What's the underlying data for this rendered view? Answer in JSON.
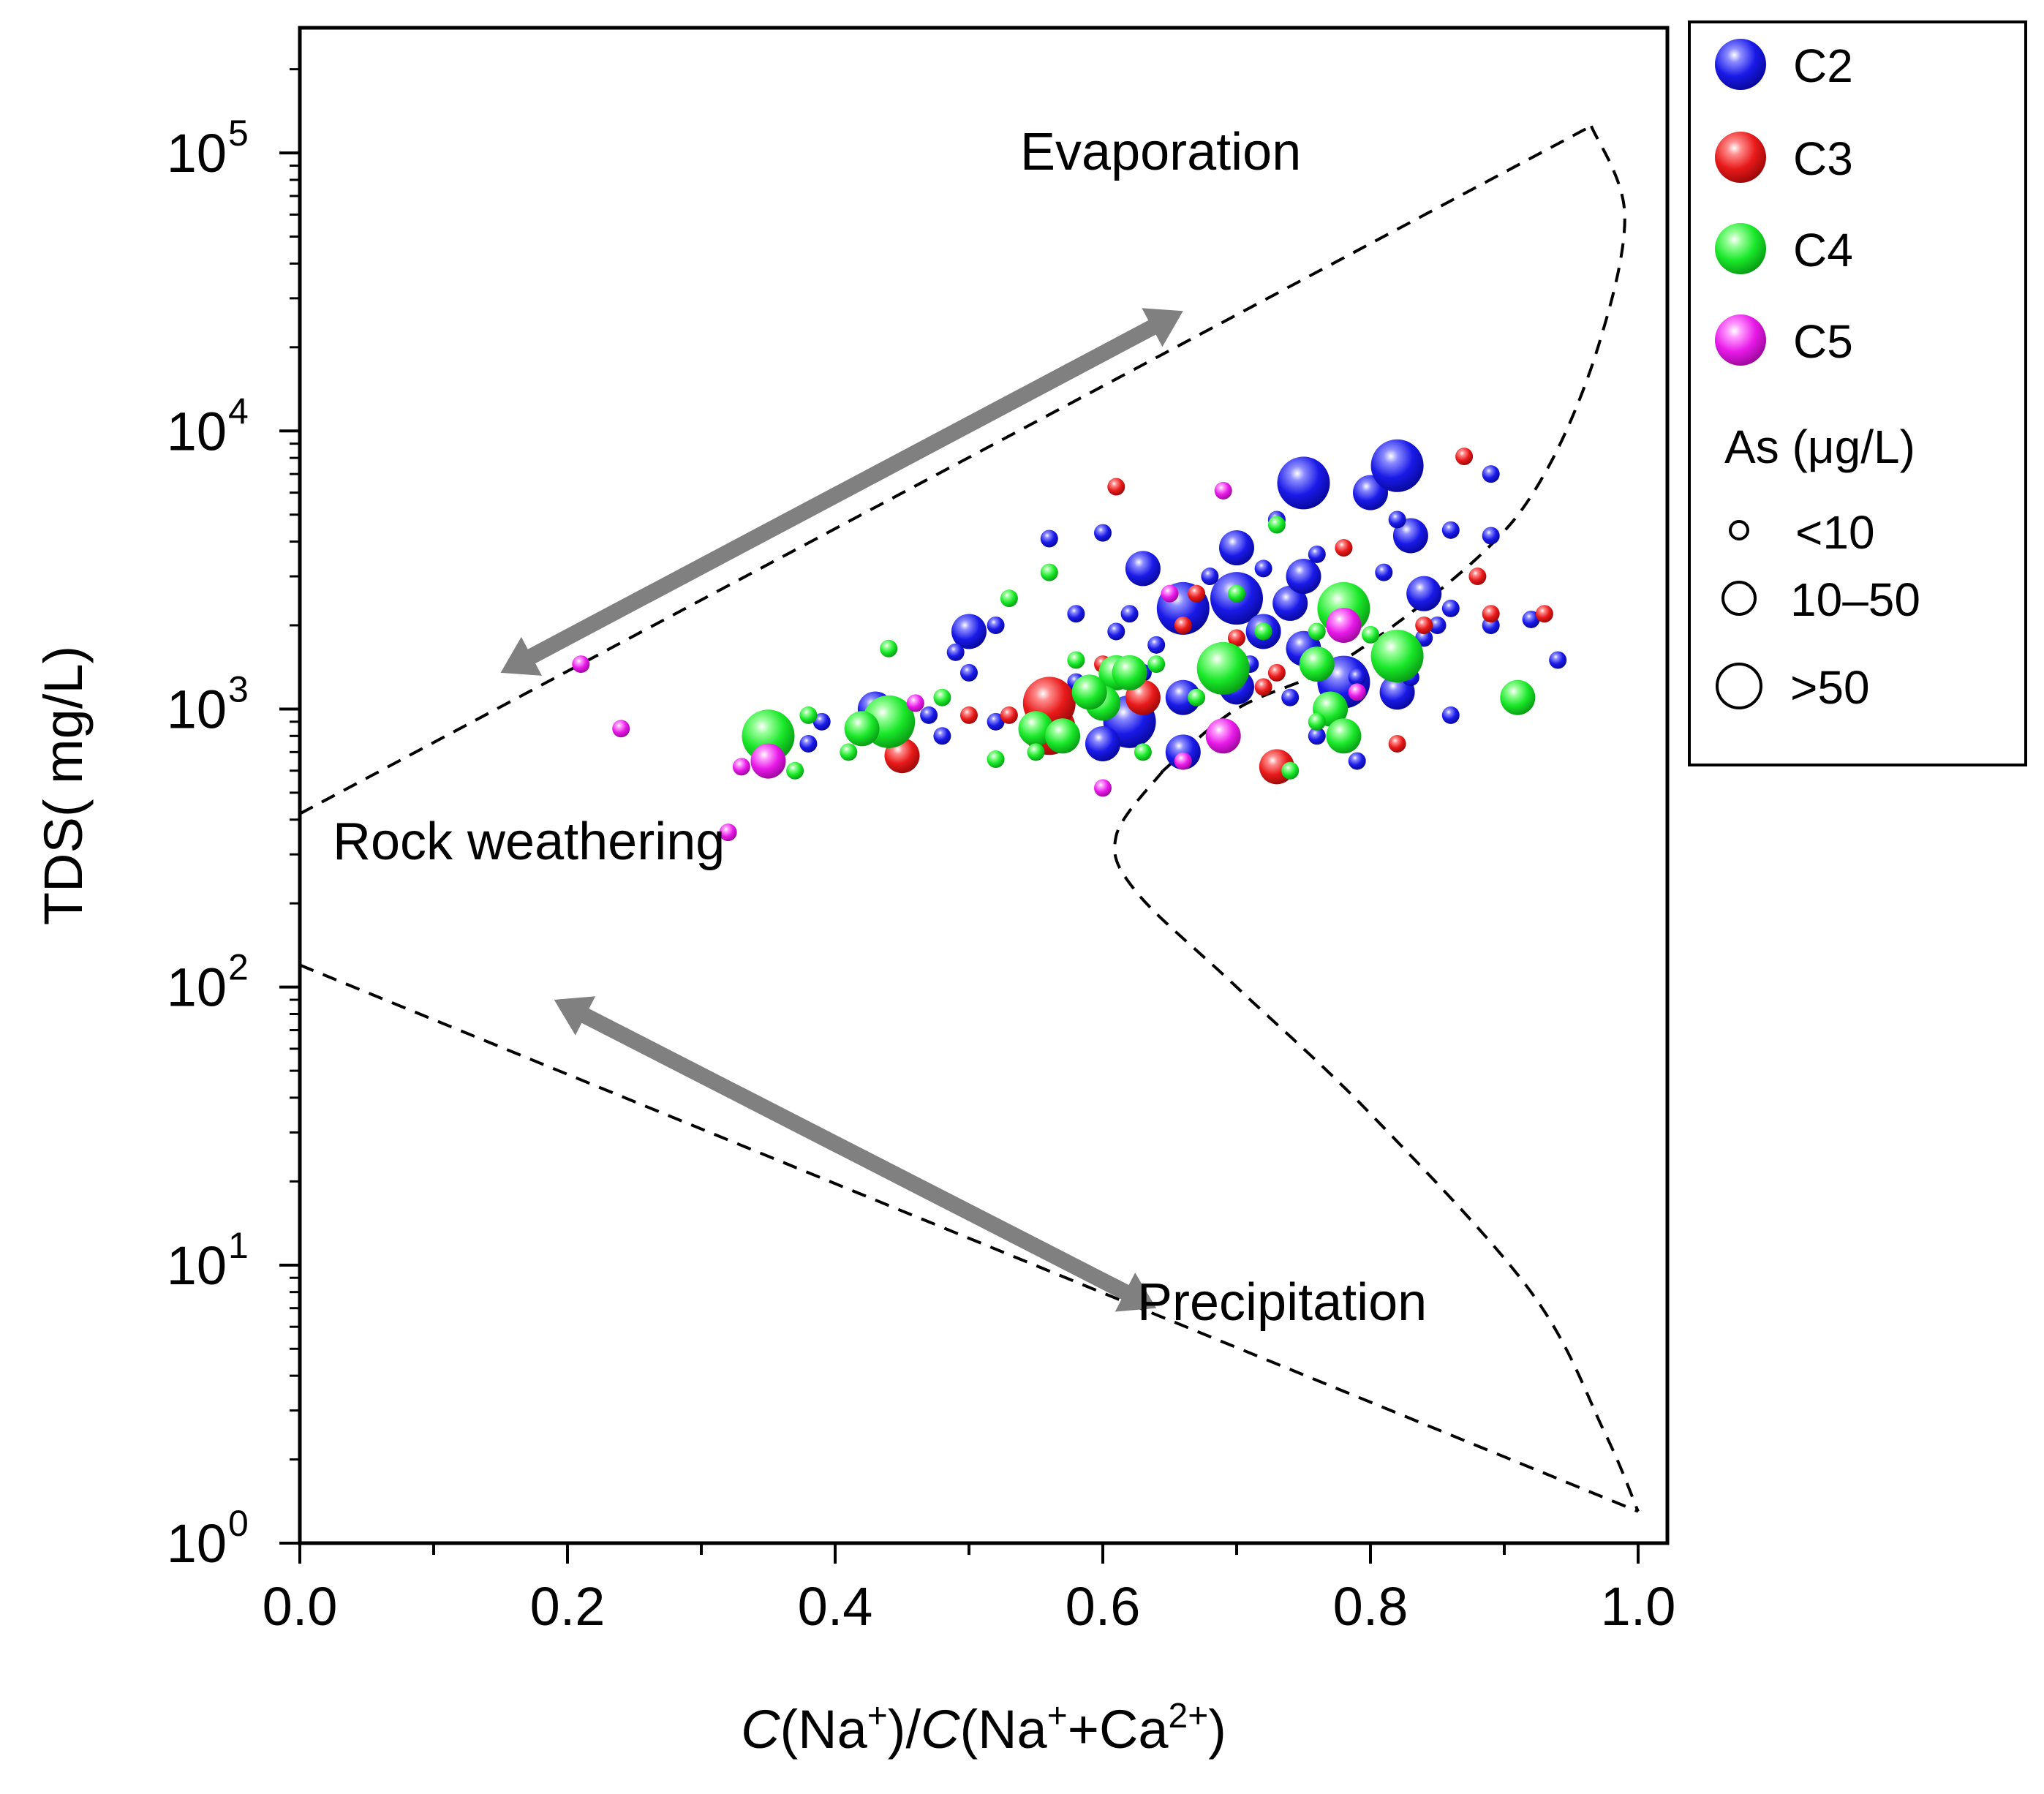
{
  "chart_data": {
    "type": "scatter",
    "title": "",
    "xlabel": {
      "italic": "C",
      "main": "(Na",
      "sup1": "+",
      "mid": ")/",
      "italic2": "C",
      "main2": "(Na",
      "sup2": "+",
      "main3": "+Ca",
      "sup3": "2+",
      "end": ")"
    },
    "ylabel": "TDS( mg/L)",
    "xlim": [
      0,
      1.0
    ],
    "ylim_log10": [
      0,
      5.45
    ],
    "x_ticks": [
      "0.0",
      "0.2",
      "0.4",
      "0.6",
      "0.8",
      "1.0"
    ],
    "x_tick_values": [
      0,
      0.2,
      0.4,
      0.6,
      0.8,
      1.0
    ],
    "y_ticks": [
      {
        "base": "10",
        "exp": "0",
        "value": 0
      },
      {
        "base": "10",
        "exp": "1",
        "value": 1
      },
      {
        "base": "10",
        "exp": "2",
        "value": 2
      },
      {
        "base": "10",
        "exp": "3",
        "value": 3
      },
      {
        "base": "10",
        "exp": "4",
        "value": 4
      },
      {
        "base": "10",
        "exp": "5",
        "value": 5
      }
    ],
    "annotations": {
      "evaporation": "Evaporation",
      "rock_weathering": "Rock weathering",
      "precipitation": "Precipitation"
    },
    "boundary_curves": {
      "upper": [
        [
          0,
          420
        ],
        [
          0.965,
          125000
        ]
      ],
      "right": [
        [
          0.965,
          125000
        ],
        [
          0.99,
          60000
        ],
        [
          0.97,
          20000
        ],
        [
          0.93,
          7000
        ],
        [
          0.88,
          3500
        ],
        [
          0.78,
          1500
        ],
        [
          0.7,
          1000
        ],
        [
          0.645,
          600
        ]
      ],
      "middle": [
        [
          0.645,
          600
        ],
        [
          0.61,
          350
        ],
        [
          0.625,
          220
        ],
        [
          0.7,
          100
        ],
        [
          0.8,
          35
        ],
        [
          0.92,
          8
        ],
        [
          0.975,
          2.5
        ],
        [
          1.0,
          1.3
        ]
      ],
      "lower": [
        [
          0,
          120
        ],
        [
          1.0,
          1.3
        ]
      ]
    },
    "arrows": [
      {
        "from": [
          0.15,
          1350
        ],
        "to": [
          0.66,
          27000
        ]
      },
      {
        "from": [
          0.19,
          90
        ],
        "to": [
          0.64,
          7
        ]
      }
    ],
    "series_colors": {
      "C2": "#1010e0",
      "C3": "#e01010",
      "C4": "#10e020",
      "C5": "#e020e0"
    },
    "size_categories": {
      "small": "<10",
      "medium": "10–50",
      "large": ">50"
    },
    "series": [
      {
        "name": "C2",
        "points": [
          [
            0.75,
            6500,
            3
          ],
          [
            0.8,
            6000,
            2
          ],
          [
            0.82,
            7500,
            3
          ],
          [
            0.83,
            4200,
            2
          ],
          [
            0.89,
            7000,
            1
          ],
          [
            0.82,
            4800,
            1
          ],
          [
            0.7,
            3800,
            2
          ],
          [
            0.63,
            3200,
            2
          ],
          [
            0.7,
            2500,
            3
          ],
          [
            0.66,
            2300,
            3
          ],
          [
            0.74,
            2400,
            2
          ],
          [
            0.75,
            3000,
            2
          ],
          [
            0.73,
            4800,
            1
          ],
          [
            0.6,
            4300,
            1
          ],
          [
            0.56,
            4100,
            1
          ],
          [
            0.68,
            3000,
            1
          ],
          [
            0.76,
            3600,
            1
          ],
          [
            0.72,
            3200,
            1
          ],
          [
            0.81,
            3100,
            1
          ],
          [
            0.84,
            2600,
            2
          ],
          [
            0.86,
            2300,
            1
          ],
          [
            0.86,
            4400,
            1
          ],
          [
            0.89,
            4200,
            1
          ],
          [
            0.5,
            1900,
            2
          ],
          [
            0.52,
            2000,
            1
          ],
          [
            0.49,
            1600,
            1
          ],
          [
            0.5,
            1350,
            1
          ],
          [
            0.58,
            2200,
            1
          ],
          [
            0.61,
            1900,
            1
          ],
          [
            0.62,
            2200,
            1
          ],
          [
            0.64,
            1700,
            1
          ],
          [
            0.72,
            1900,
            2
          ],
          [
            0.75,
            1650,
            2
          ],
          [
            0.78,
            1250,
            3
          ],
          [
            0.71,
            1450,
            1
          ],
          [
            0.74,
            1100,
            1
          ],
          [
            0.79,
            1300,
            1
          ],
          [
            0.81,
            1700,
            1
          ],
          [
            0.82,
            1150,
            2
          ],
          [
            0.84,
            1800,
            1
          ],
          [
            0.85,
            2000,
            1
          ],
          [
            0.89,
            2000,
            1
          ],
          [
            0.92,
            2100,
            1
          ],
          [
            0.94,
            1500,
            1
          ],
          [
            0.62,
            900,
            3
          ],
          [
            0.6,
            750,
            2
          ],
          [
            0.66,
            1100,
            2
          ],
          [
            0.66,
            700,
            2
          ],
          [
            0.43,
            1000,
            2
          ],
          [
            0.39,
            900,
            1
          ],
          [
            0.47,
            950,
            1
          ],
          [
            0.48,
            800,
            1
          ],
          [
            0.52,
            900,
            1
          ],
          [
            0.56,
            1100,
            1
          ],
          [
            0.58,
            1250,
            1
          ],
          [
            0.63,
            1350,
            1
          ],
          [
            0.7,
            1200,
            2
          ],
          [
            0.86,
            950,
            1
          ],
          [
            0.79,
            650,
            1
          ],
          [
            0.83,
            1300,
            1
          ],
          [
            0.38,
            750,
            1
          ],
          [
            0.44,
            850,
            1
          ],
          [
            0.55,
            800,
            1
          ],
          [
            0.76,
            800,
            1
          ]
        ]
      },
      {
        "name": "C3",
        "points": [
          [
            0.56,
            850,
            3
          ],
          [
            0.56,
            1050,
            3
          ],
          [
            0.45,
            680,
            2
          ],
          [
            0.73,
            620,
            2
          ],
          [
            0.63,
            1100,
            2
          ],
          [
            0.61,
            6300,
            1
          ],
          [
            0.87,
            8100,
            1
          ],
          [
            0.88,
            3000,
            1
          ],
          [
            0.72,
            1200,
            1
          ],
          [
            0.5,
            950,
            1
          ],
          [
            0.53,
            950,
            1
          ],
          [
            0.66,
            2000,
            1
          ],
          [
            0.67,
            2600,
            1
          ],
          [
            0.77,
            2500,
            1
          ],
          [
            0.84,
            2000,
            1
          ],
          [
            0.89,
            2200,
            1
          ],
          [
            0.93,
            2200,
            1
          ],
          [
            0.82,
            750,
            1
          ],
          [
            0.73,
            1350,
            1
          ],
          [
            0.78,
            3800,
            1
          ],
          [
            0.6,
            1450,
            1
          ],
          [
            0.7,
            1800,
            1
          ]
        ]
      },
      {
        "name": "C4",
        "points": [
          [
            0.35,
            800,
            3
          ],
          [
            0.44,
            900,
            3
          ],
          [
            0.42,
            850,
            2
          ],
          [
            0.69,
            1400,
            3
          ],
          [
            0.78,
            2300,
            3
          ],
          [
            0.82,
            1550,
            3
          ],
          [
            0.61,
            1350,
            2
          ],
          [
            0.6,
            1050,
            2
          ],
          [
            0.55,
            850,
            2
          ],
          [
            0.57,
            800,
            2
          ],
          [
            0.59,
            1150,
            2
          ],
          [
            0.62,
            1350,
            2
          ],
          [
            0.76,
            1450,
            2
          ],
          [
            0.77,
            1000,
            2
          ],
          [
            0.78,
            800,
            2
          ],
          [
            0.91,
            1100,
            2
          ],
          [
            0.53,
            2500,
            1
          ],
          [
            0.56,
            3100,
            1
          ],
          [
            0.44,
            1650,
            1
          ],
          [
            0.48,
            1100,
            1
          ],
          [
            0.38,
            950,
            1
          ],
          [
            0.41,
            700,
            1
          ],
          [
            0.37,
            600,
            1
          ],
          [
            0.52,
            660,
            1
          ],
          [
            0.55,
            700,
            1
          ],
          [
            0.58,
            1500,
            1
          ],
          [
            0.64,
            1450,
            1
          ],
          [
            0.67,
            1100,
            1
          ],
          [
            0.7,
            2600,
            1
          ],
          [
            0.72,
            1900,
            1
          ],
          [
            0.73,
            4600,
            1
          ],
          [
            0.76,
            1900,
            1
          ],
          [
            0.74,
            600,
            1
          ],
          [
            0.76,
            900,
            1
          ],
          [
            0.8,
            1850,
            1
          ],
          [
            0.63,
            700,
            1
          ]
        ]
      },
      {
        "name": "C5",
        "points": [
          [
            0.35,
            650,
            2
          ],
          [
            0.69,
            800,
            2
          ],
          [
            0.78,
            2000,
            2
          ],
          [
            0.21,
            1450,
            1
          ],
          [
            0.24,
            850,
            1
          ],
          [
            0.33,
            620,
            1
          ],
          [
            0.32,
            360,
            1
          ],
          [
            0.6,
            520,
            1
          ],
          [
            0.69,
            6100,
            1
          ],
          [
            0.65,
            2600,
            1
          ],
          [
            0.66,
            650,
            1
          ],
          [
            0.46,
            1050,
            1
          ],
          [
            0.79,
            1150,
            1
          ]
        ]
      }
    ],
    "legend": {
      "entries": [
        {
          "label": "C2",
          "color": "#1010e0"
        },
        {
          "label": "C3",
          "color": "#e01010"
        },
        {
          "label": "C4",
          "color": "#10e020"
        },
        {
          "label": "C5",
          "color": "#e020e0"
        }
      ],
      "size_title": "As (μg/L)",
      "sizes": [
        "<10",
        "10–50",
        ">50"
      ],
      "position": "top-right, outside plot"
    }
  }
}
